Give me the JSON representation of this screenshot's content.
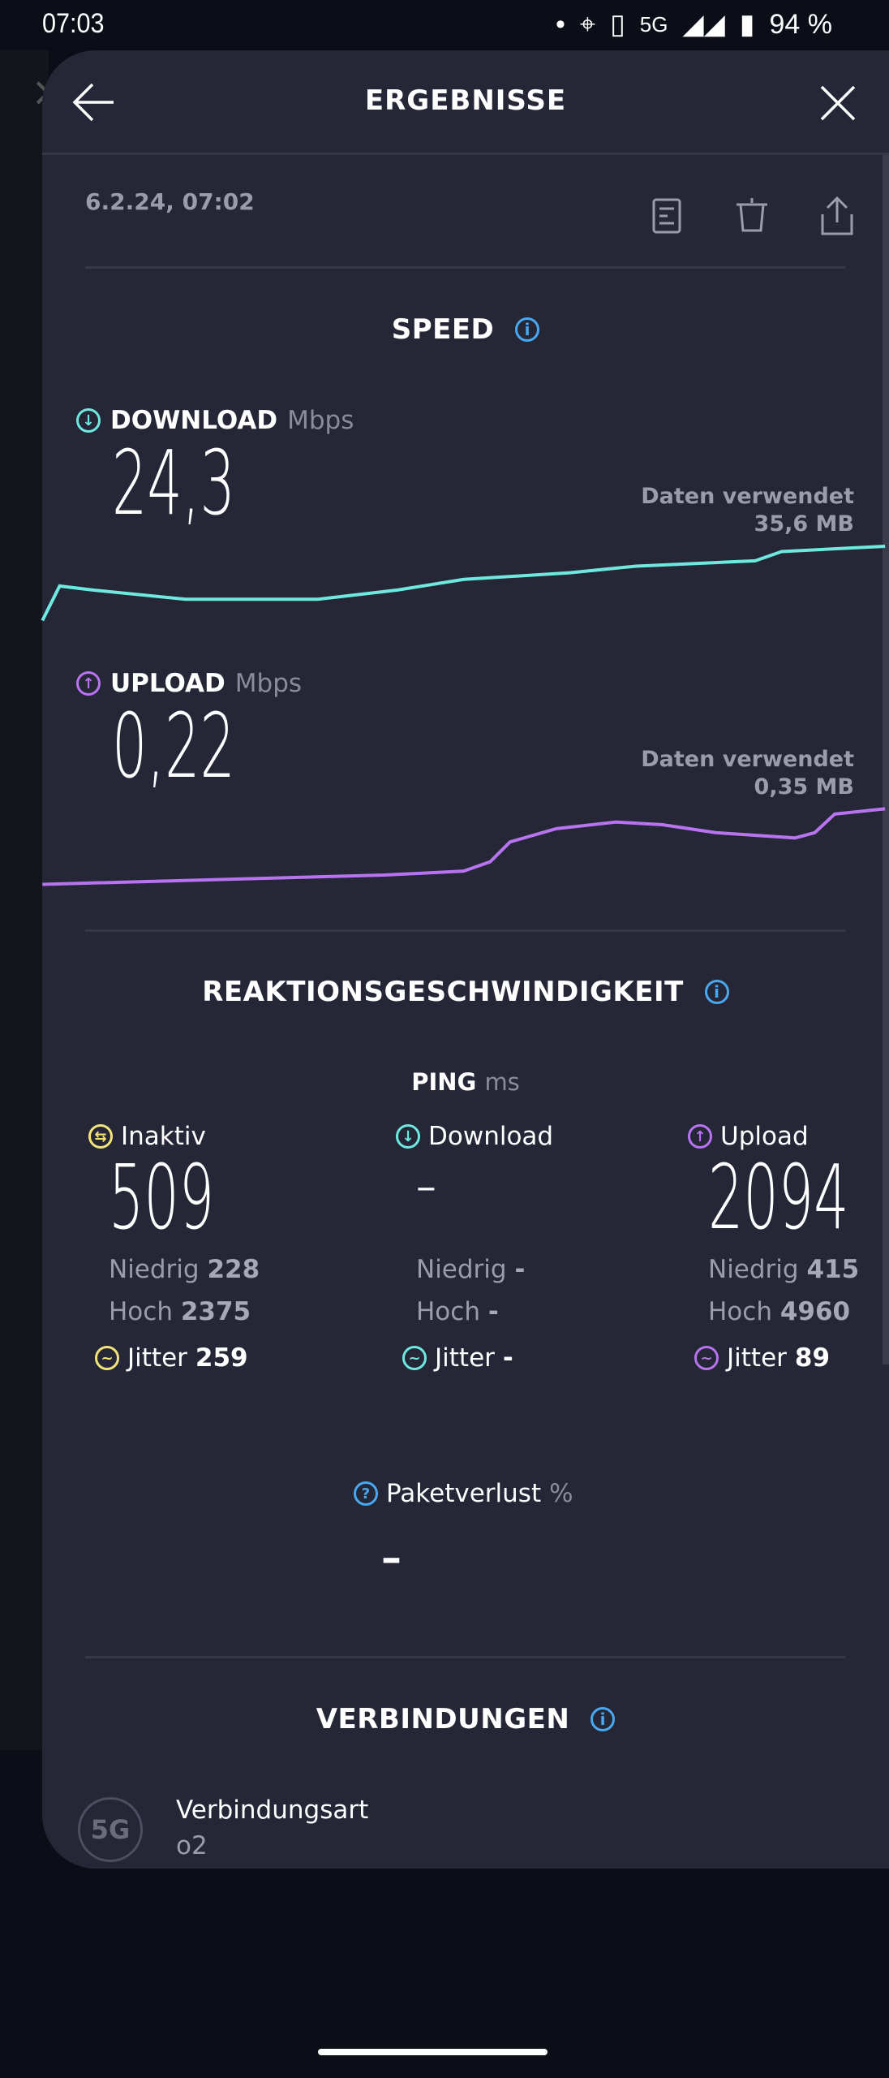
{
  "status_bar": {
    "time": "07:03",
    "network": "5G",
    "battery": "94 %"
  },
  "header": {
    "title": "ERGEBNISSE"
  },
  "result": {
    "date": "6.2.24, 07:02"
  },
  "speed": {
    "title": "SPEED",
    "download": {
      "label": "DOWNLOAD",
      "unit": "Mbps",
      "value": "24,3",
      "data_used_label": "Daten verwendet",
      "data_used": "35,6 MB"
    },
    "upload": {
      "label": "UPLOAD",
      "unit": "Mbps",
      "value": "0,22",
      "data_used_label": "Daten verwendet",
      "data_used": "0,35 MB"
    }
  },
  "reaction": {
    "title": "REAKTIONSGESCHWINDIGKEIT",
    "ping_label": "PING",
    "ping_unit": "ms",
    "columns": [
      {
        "label": "Inaktiv",
        "value": "509",
        "low_label": "Niedrig",
        "low": "228",
        "high_label": "Hoch",
        "high": "2375",
        "jitter_label": "Jitter",
        "jitter": "259"
      },
      {
        "label": "Download",
        "value": "–",
        "low_label": "Niedrig",
        "low": "-",
        "high_label": "Hoch",
        "high": "-",
        "jitter_label": "Jitter",
        "jitter": "-"
      },
      {
        "label": "Upload",
        "value": "2094",
        "low_label": "Niedrig",
        "low": "415",
        "high_label": "Hoch",
        "high": "4960",
        "jitter_label": "Jitter",
        "jitter": "89"
      }
    ],
    "packet_loss": {
      "label": "Paketverlust",
      "unit": "%",
      "value": "–"
    }
  },
  "connections": {
    "title": "VERBINDUNGEN",
    "badge": "5G",
    "type_label": "Verbindungsart",
    "type_value": "o2"
  },
  "colors": {
    "background": "#0b0d17",
    "sheet": "#252737",
    "download": "#6fe8e0",
    "upload": "#b874f0",
    "idle": "#f3e37a",
    "info": "#4aa8f0"
  }
}
